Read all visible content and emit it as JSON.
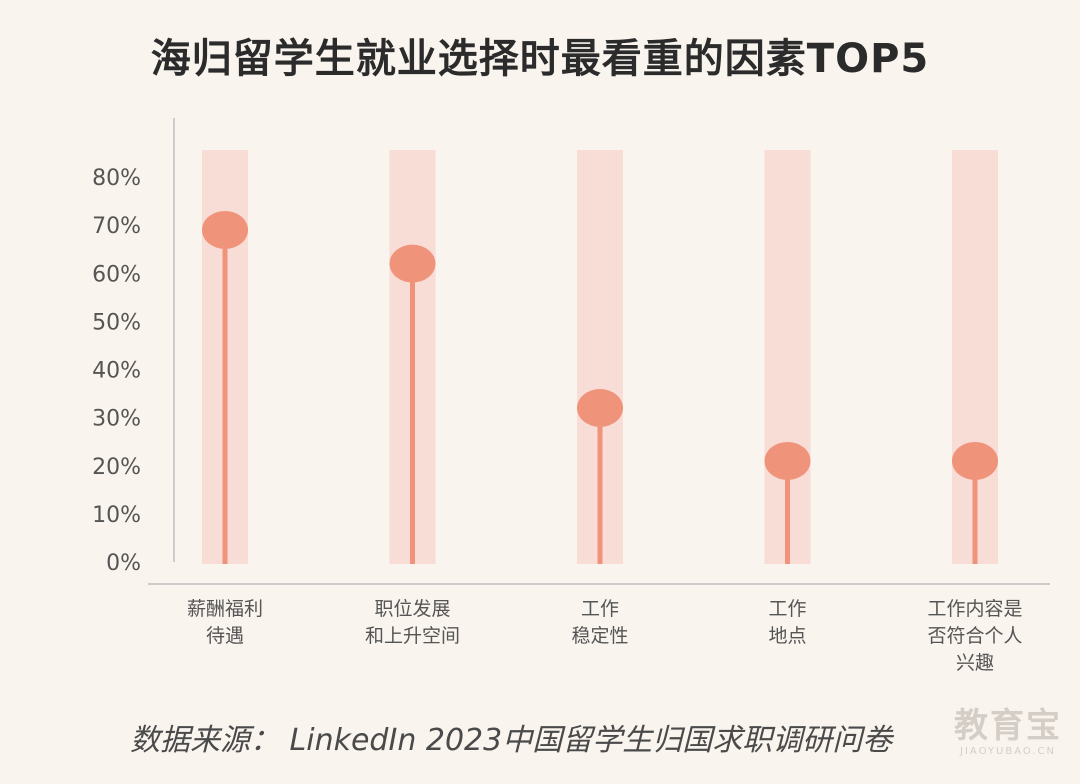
{
  "title": "海归留学生就业选择时最看重的因素TOP5",
  "source": "数据来源：  LinkedIn 2023中国留学生归国求职调研问卷",
  "watermark": {
    "main": "教育宝",
    "sub": "JIAOYUBAO.CN"
  },
  "colors": {
    "background": "#f9f4ee",
    "band": "#f8dcd6",
    "marker": "#f0937b",
    "axis": "#cccccc",
    "text": "#555555"
  },
  "chart_data": {
    "type": "lollipop",
    "title": "海归留学生就业选择时最看重的因素TOP5",
    "categories": [
      [
        "薪酬福利",
        "待遇"
      ],
      [
        "职位发展",
        "和上升空间"
      ],
      [
        "工作",
        "稳定性"
      ],
      [
        "工作",
        "地点"
      ],
      [
        "工作内容是",
        "否符合个人",
        "兴趣"
      ]
    ],
    "values": [
      69,
      62,
      32,
      21,
      21
    ],
    "unit": "%",
    "ylim": [
      0,
      80
    ],
    "yticks": [
      "0%",
      "10%",
      "20%",
      "30%",
      "40%",
      "50%",
      "60%",
      "70%",
      "80%"
    ],
    "grid": false,
    "legend": "none"
  }
}
